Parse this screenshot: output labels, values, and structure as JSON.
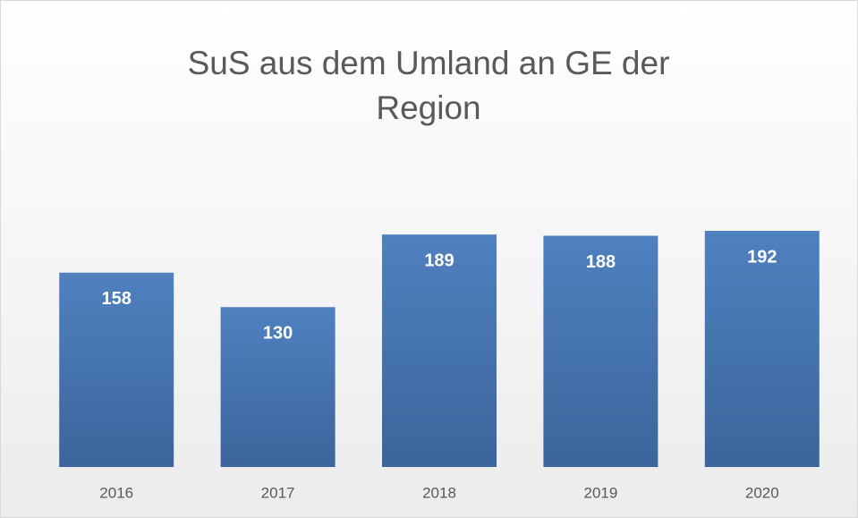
{
  "chart_data": {
    "type": "bar",
    "title": "SuS aus dem Umland an GE der Region",
    "categories": [
      "2016",
      "2017",
      "2018",
      "2019",
      "2020"
    ],
    "values": [
      158,
      130,
      189,
      188,
      192
    ],
    "color": "#4a77b4",
    "ylim": [
      0,
      200
    ]
  }
}
